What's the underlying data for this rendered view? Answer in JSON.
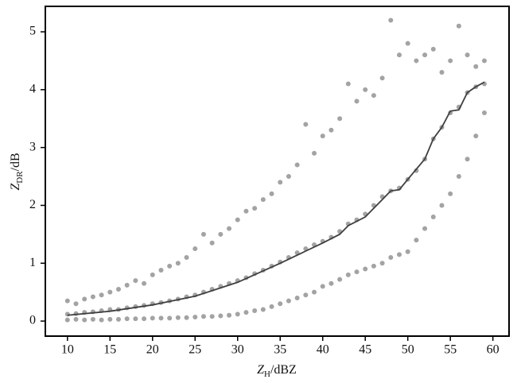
{
  "chart_data": {
    "type": "scatter",
    "xlabel_parts": [
      "Z",
      "H",
      "/dBZ"
    ],
    "ylabel_parts": [
      "Z",
      "DR",
      "/dB"
    ],
    "xlim": [
      7.4,
      61.9
    ],
    "ylim": [
      -0.26,
      5.44
    ],
    "xticks": [
      10,
      15,
      20,
      25,
      30,
      35,
      40,
      45,
      50,
      55,
      60
    ],
    "yticks": [
      0,
      1,
      2,
      3,
      4,
      5
    ],
    "series": [
      {
        "type": "scatter",
        "color": "#a3a3a3",
        "x": [
          10,
          10,
          10,
          11,
          11,
          11,
          12,
          12,
          12,
          13,
          13,
          13,
          14,
          14,
          14,
          15,
          15,
          15,
          16,
          16,
          16,
          17,
          17,
          17,
          18,
          18,
          18,
          19,
          19,
          19,
          20,
          20,
          20,
          21,
          21,
          21,
          22,
          22,
          22,
          23,
          23,
          23,
          24,
          24,
          24,
          25,
          25,
          25,
          26,
          26,
          26,
          27,
          27,
          27,
          28,
          28,
          28,
          29,
          29,
          29,
          30,
          30,
          30,
          31,
          31,
          31,
          32,
          32,
          32,
          33,
          33,
          33,
          34,
          34,
          34,
          35,
          35,
          35,
          36,
          36,
          36,
          37,
          37,
          37,
          38,
          38,
          38,
          39,
          39,
          39,
          40,
          40,
          40,
          41,
          41,
          41,
          42,
          42,
          42,
          43,
          43,
          43,
          44,
          44,
          44,
          45,
          45,
          45,
          46,
          46,
          46,
          47,
          47,
          47,
          48,
          48,
          48,
          49,
          49,
          49,
          50,
          50,
          50,
          51,
          51,
          51,
          52,
          52,
          52,
          53,
          53,
          53,
          54,
          54,
          54,
          55,
          55,
          55,
          56,
          56,
          56,
          57,
          57,
          57,
          58,
          58,
          58,
          59,
          59,
          59
        ],
        "values": [
          0.02,
          0.12,
          0.35,
          0.03,
          0.13,
          0.3,
          0.02,
          0.15,
          0.38,
          0.03,
          0.16,
          0.42,
          0.02,
          0.18,
          0.45,
          0.03,
          0.2,
          0.5,
          0.03,
          0.2,
          0.55,
          0.04,
          0.23,
          0.62,
          0.04,
          0.25,
          0.7,
          0.04,
          0.27,
          0.65,
          0.05,
          0.3,
          0.8,
          0.05,
          0.32,
          0.88,
          0.05,
          0.35,
          0.95,
          0.06,
          0.38,
          1.0,
          0.06,
          0.42,
          1.1,
          0.07,
          0.45,
          1.25,
          0.08,
          0.5,
          1.5,
          0.08,
          0.55,
          1.35,
          0.09,
          0.6,
          1.5,
          0.1,
          0.65,
          1.6,
          0.12,
          0.7,
          1.75,
          0.15,
          0.75,
          1.9,
          0.18,
          0.82,
          1.95,
          0.2,
          0.88,
          2.1,
          0.25,
          0.95,
          2.2,
          0.3,
          1.02,
          2.4,
          0.35,
          1.1,
          2.5,
          0.4,
          1.18,
          2.7,
          0.45,
          1.25,
          3.4,
          0.5,
          1.32,
          2.9,
          0.6,
          1.38,
          3.2,
          0.65,
          1.45,
          3.3,
          0.72,
          1.55,
          3.5,
          0.8,
          1.68,
          4.1,
          0.85,
          1.75,
          3.8,
          0.9,
          1.85,
          4.0,
          0.95,
          2.0,
          3.9,
          1.0,
          2.15,
          4.2,
          1.1,
          2.25,
          5.2,
          1.15,
          2.3,
          4.6,
          1.2,
          2.45,
          4.8,
          1.4,
          2.6,
          4.5,
          1.6,
          2.8,
          4.6,
          1.8,
          3.15,
          4.7,
          2.0,
          3.35,
          4.3,
          2.2,
          3.6,
          4.5,
          2.5,
          3.7,
          5.1,
          2.8,
          3.95,
          4.6,
          3.2,
          4.05,
          4.4,
          3.6,
          4.1,
          4.5
        ]
      },
      {
        "type": "line",
        "color": "#3f3f3f",
        "x": [
          10,
          15,
          20,
          25,
          30,
          35,
          40,
          42,
          43,
          45,
          48,
          49,
          50,
          52,
          53,
          54,
          55,
          56,
          57,
          58,
          59
        ],
        "values": [
          0.1,
          0.17,
          0.28,
          0.43,
          0.67,
          1.0,
          1.35,
          1.5,
          1.65,
          1.8,
          2.25,
          2.27,
          2.45,
          2.8,
          3.15,
          3.35,
          3.63,
          3.65,
          3.95,
          4.05,
          4.13
        ]
      }
    ]
  }
}
